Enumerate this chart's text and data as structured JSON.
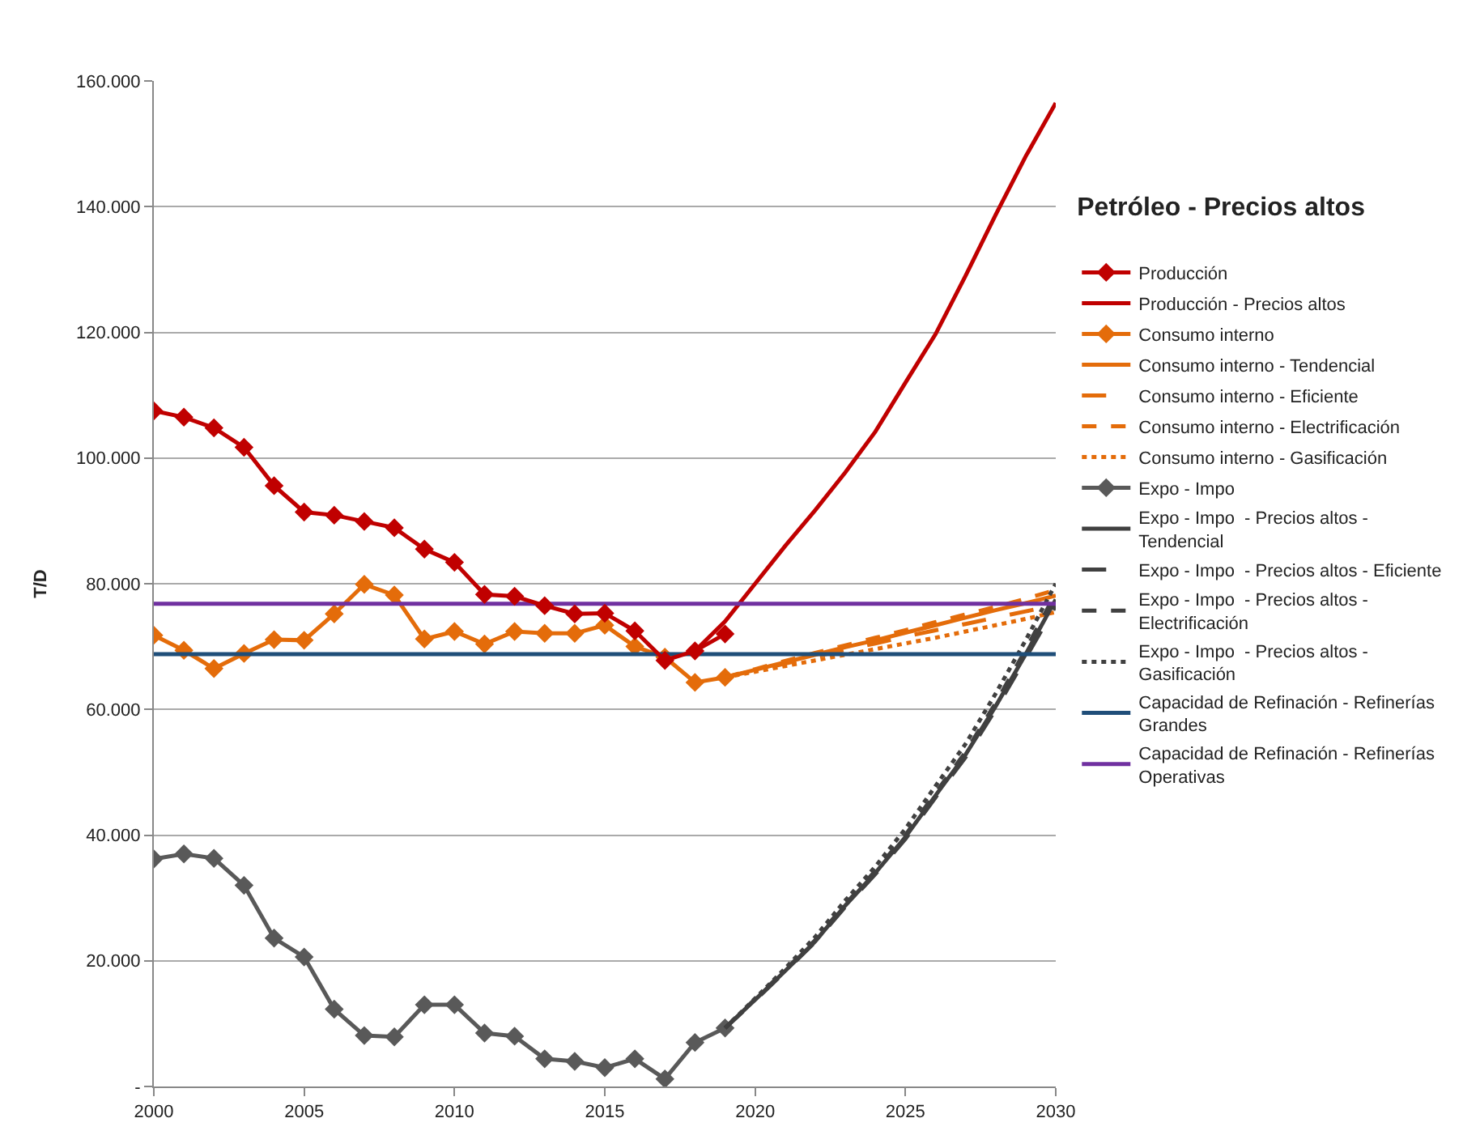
{
  "chart_data": {
    "type": "line",
    "legend_title": "Petróleo - Precios altos",
    "ylabel": "T/D",
    "xlim": [
      2000,
      2030
    ],
    "xticks": [
      2000,
      2005,
      2010,
      2015,
      2020,
      2025,
      2030
    ],
    "ylim": [
      0,
      160000
    ],
    "yticks": [
      {
        "value": 0,
        "label": "-"
      },
      {
        "value": 20000,
        "label": "20.000"
      },
      {
        "value": 40000,
        "label": "40.000"
      },
      {
        "value": 60000,
        "label": "60.000"
      },
      {
        "value": 80000,
        "label": "80.000"
      },
      {
        "value": 100000,
        "label": "100.000"
      },
      {
        "value": 120000,
        "label": "120.000"
      },
      {
        "value": 140000,
        "label": "140.000"
      },
      {
        "value": 160000,
        "label": "160.000"
      }
    ],
    "grid": "y",
    "legend": "right",
    "series": [
      {
        "name": "Producción",
        "color": "#c00000",
        "marker": "diamond",
        "line_style": "solid",
        "x": [
          2000,
          2001,
          2002,
          2003,
          2004,
          2005,
          2006,
          2007,
          2008,
          2009,
          2010,
          2011,
          2012,
          2013,
          2014,
          2015,
          2016,
          2017,
          2018,
          2019
        ],
        "values": [
          107500,
          106500,
          104800,
          101700,
          95600,
          91400,
          90900,
          89900,
          88900,
          85500,
          83400,
          78300,
          78000,
          76500,
          75200,
          75300,
          72500,
          67800,
          69300,
          72000
        ]
      },
      {
        "name": "Producción - Precios altos",
        "color": "#c00000",
        "marker": "none",
        "line_style": "solid",
        "x": [
          2018,
          2019,
          2020,
          2021,
          2022,
          2023,
          2024,
          2025,
          2026,
          2027,
          2028,
          2029,
          2030
        ],
        "values": [
          69300,
          74000,
          80000,
          86000,
          91700,
          97700,
          104200,
          112000,
          119700,
          129000,
          138700,
          148000,
          156500
        ]
      },
      {
        "name": "Consumo interno",
        "color": "#e46c0a",
        "marker": "diamond",
        "line_style": "solid",
        "x": [
          2000,
          2001,
          2002,
          2003,
          2004,
          2005,
          2006,
          2007,
          2008,
          2009,
          2010,
          2011,
          2012,
          2013,
          2014,
          2015,
          2016,
          2017,
          2018,
          2019
        ],
        "values": [
          71800,
          69400,
          66500,
          68900,
          71100,
          71000,
          75200,
          79900,
          78200,
          71200,
          72400,
          70400,
          72400,
          72100,
          72100,
          73400,
          70000,
          68300,
          64300,
          65100
        ]
      },
      {
        "name": "Consumo interno - Tendencial",
        "color": "#e46c0a",
        "marker": "none",
        "line_style": "solid",
        "x": [
          2019,
          2020,
          2021,
          2022,
          2023,
          2024,
          2025,
          2026,
          2027,
          2028,
          2029,
          2030
        ],
        "values": [
          65100,
          66300,
          67500,
          68700,
          69900,
          71000,
          72200,
          73400,
          74600,
          75800,
          76900,
          78100
        ]
      },
      {
        "name": "Consumo interno - Eficiente",
        "color": "#e46c0a",
        "marker": "none",
        "line_style": "longdash",
        "x": [
          2019,
          2020,
          2021,
          2022,
          2023,
          2024,
          2025,
          2026,
          2027,
          2028,
          2029,
          2030
        ],
        "values": [
          65100,
          66200,
          67300,
          68400,
          69500,
          70500,
          71600,
          72600,
          73600,
          74600,
          75600,
          76600
        ]
      },
      {
        "name": "Consumo interno - Electrificación",
        "color": "#e46c0a",
        "marker": "none",
        "line_style": "dashed",
        "x": [
          2019,
          2020,
          2021,
          2022,
          2023,
          2024,
          2025,
          2026,
          2027,
          2028,
          2029,
          2030
        ],
        "values": [
          65100,
          66400,
          67700,
          69000,
          70200,
          71400,
          72600,
          73900,
          75100,
          76300,
          77600,
          79000
        ]
      },
      {
        "name": "Consumo interno - Gasificación",
        "color": "#e46c0a",
        "marker": "none",
        "line_style": "dotted",
        "x": [
          2019,
          2020,
          2021,
          2022,
          2023,
          2024,
          2025,
          2026,
          2027,
          2028,
          2029,
          2030
        ],
        "values": [
          65100,
          66000,
          66900,
          67800,
          68700,
          69600,
          70500,
          71400,
          72400,
          73400,
          74400,
          75500
        ]
      },
      {
        "name": "Expo - Impo",
        "color": "#595959",
        "marker": "diamond",
        "line_style": "solid",
        "x": [
          2000,
          2001,
          2002,
          2003,
          2004,
          2005,
          2006,
          2007,
          2008,
          2009,
          2010,
          2011,
          2012,
          2013,
          2014,
          2015,
          2016,
          2017,
          2018,
          2019
        ],
        "values": [
          36200,
          37000,
          36300,
          32000,
          23600,
          20600,
          12300,
          8100,
          7900,
          13000,
          13000,
          8500,
          8000,
          4400,
          4000,
          3000,
          4400,
          1200,
          7000,
          9300
        ]
      },
      {
        "name": "Expo - Impo  - Precios altos - Tendencial",
        "color": "#404040",
        "marker": "none",
        "line_style": "solid",
        "x": [
          2019,
          2020,
          2021,
          2022,
          2023,
          2024,
          2025,
          2026,
          2027,
          2028,
          2029,
          2030
        ],
        "values": [
          9300,
          13800,
          18400,
          23100,
          28800,
          34000,
          39700,
          46300,
          52800,
          60500,
          68800,
          77500
        ]
      },
      {
        "name": "Expo - Impo  - Precios altos - Eficiente",
        "color": "#404040",
        "marker": "none",
        "line_style": "longdash",
        "x": [
          2019,
          2020,
          2021,
          2022,
          2023,
          2024,
          2025,
          2026,
          2027,
          2028,
          2029,
          2030
        ],
        "values": [
          9300,
          13700,
          18300,
          23000,
          28600,
          33800,
          39400,
          46000,
          52400,
          60000,
          68200,
          76500
        ]
      },
      {
        "name": "Expo - Impo  - Precios altos - Electrificación",
        "color": "#404040",
        "marker": "none",
        "line_style": "dashed",
        "x": [
          2019,
          2020,
          2021,
          2022,
          2023,
          2024,
          2025,
          2026,
          2027,
          2028,
          2029,
          2030
        ],
        "values": [
          9300,
          13900,
          18500,
          23300,
          29000,
          34300,
          40000,
          46700,
          53200,
          61000,
          69500,
          78500
        ]
      },
      {
        "name": "Expo - Impo  - Precios altos - Gasificación",
        "color": "#404040",
        "marker": "none",
        "line_style": "dotted",
        "x": [
          2019,
          2020,
          2021,
          2022,
          2023,
          2024,
          2025,
          2026,
          2027,
          2028,
          2029,
          2030
        ],
        "values": [
          9300,
          14000,
          18800,
          23800,
          29600,
          35000,
          41000,
          47800,
          54500,
          62500,
          71000,
          80000
        ]
      },
      {
        "name": "Capacidad de Refinación - Refinerías Grandes",
        "color": "#1f4e79",
        "marker": "none",
        "line_style": "solid",
        "x": [
          2000,
          2030
        ],
        "values": [
          68800,
          68800
        ]
      },
      {
        "name": "Capacidad de Refinación - Refinerías Operativas",
        "color": "#7030a0",
        "marker": "none",
        "line_style": "solid",
        "x": [
          2000,
          2030
        ],
        "values": [
          76800,
          76800
        ]
      }
    ]
  }
}
